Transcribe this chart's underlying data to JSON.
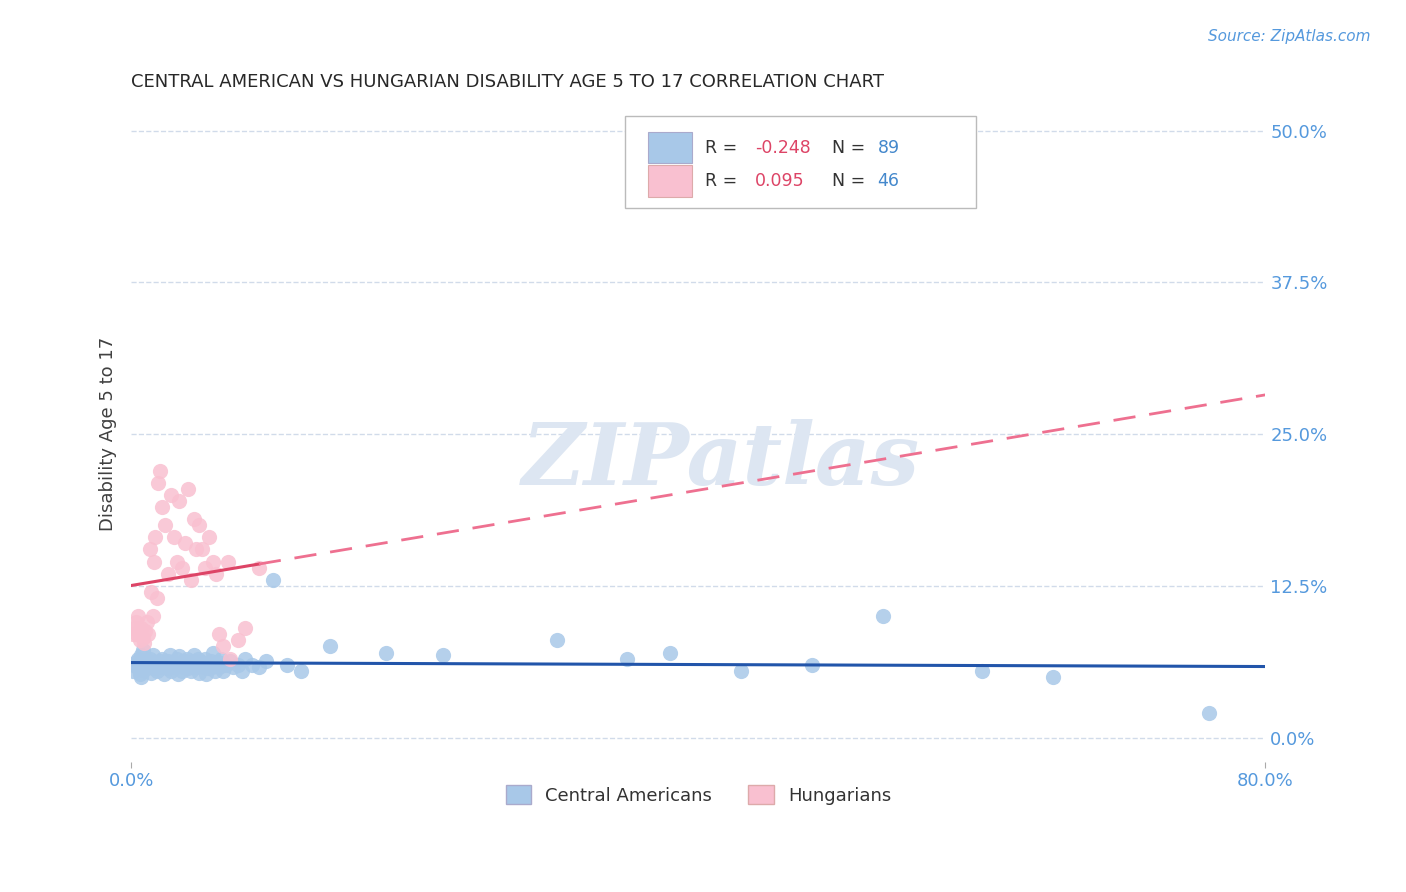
{
  "title": "CENTRAL AMERICAN VS HUNGARIAN DISABILITY AGE 5 TO 17 CORRELATION CHART",
  "source": "Source: ZipAtlas.com",
  "ylabel": "Disability Age 5 to 17",
  "xlim": [
    0.0,
    0.8
  ],
  "ylim": [
    -0.02,
    0.52
  ],
  "xlabel_tick_vals": [
    0.0,
    0.8
  ],
  "xlabel_tick_labels": [
    "0.0%",
    "80.0%"
  ],
  "ylabel_tick_vals": [
    0.0,
    0.125,
    0.25,
    0.375,
    0.5
  ],
  "ylabel_tick_labels": [
    "0.0%",
    "12.5%",
    "25.0%",
    "37.5%",
    "50.0%"
  ],
  "blue_scatter": "#a8c8e8",
  "pink_scatter": "#f9c0d0",
  "regression_blue": "#2255aa",
  "regression_pink_solid": "#dd4466",
  "regression_pink_dashed": "#ee7090",
  "grid_color": "#ccd8e8",
  "watermark_text": "ZIPatlas",
  "watermark_color": "#dde6f2",
  "title_color": "#282828",
  "axis_tick_color": "#5599dd",
  "background_color": "#ffffff",
  "legend_R_ca": "-0.248",
  "legend_N_ca": "89",
  "legend_R_hu": "0.095",
  "legend_N_hu": "46",
  "legend_num_color": "#dd4466",
  "legend_N_color": "#4488cc",
  "ca_x": [
    0.001,
    0.002,
    0.003,
    0.004,
    0.005,
    0.006,
    0.007,
    0.007,
    0.008,
    0.009,
    0.01,
    0.011,
    0.012,
    0.013,
    0.014,
    0.015,
    0.016,
    0.017,
    0.018,
    0.019,
    0.02,
    0.021,
    0.022,
    0.023,
    0.024,
    0.025,
    0.026,
    0.027,
    0.028,
    0.029,
    0.03,
    0.031,
    0.032,
    0.033,
    0.034,
    0.035,
    0.036,
    0.037,
    0.038,
    0.039,
    0.04,
    0.041,
    0.042,
    0.043,
    0.044,
    0.045,
    0.046,
    0.047,
    0.048,
    0.049,
    0.05,
    0.051,
    0.052,
    0.053,
    0.054,
    0.055,
    0.056,
    0.057,
    0.058,
    0.059,
    0.06,
    0.061,
    0.062,
    0.063,
    0.065,
    0.067,
    0.07,
    0.072,
    0.075,
    0.078,
    0.08,
    0.085,
    0.09,
    0.095,
    0.1,
    0.11,
    0.12,
    0.14,
    0.18,
    0.22,
    0.3,
    0.35,
    0.38,
    0.43,
    0.48,
    0.53,
    0.6,
    0.65,
    0.76
  ],
  "ca_y": [
    0.055,
    0.06,
    0.062,
    0.058,
    0.065,
    0.052,
    0.068,
    0.05,
    0.072,
    0.056,
    0.06,
    0.064,
    0.058,
    0.065,
    0.053,
    0.068,
    0.057,
    0.062,
    0.055,
    0.06,
    0.063,
    0.058,
    0.065,
    0.052,
    0.06,
    0.057,
    0.063,
    0.068,
    0.055,
    0.06,
    0.062,
    0.058,
    0.065,
    0.052,
    0.067,
    0.06,
    0.055,
    0.063,
    0.058,
    0.065,
    0.057,
    0.062,
    0.055,
    0.06,
    0.068,
    0.063,
    0.058,
    0.065,
    0.053,
    0.06,
    0.062,
    0.058,
    0.065,
    0.052,
    0.057,
    0.06,
    0.063,
    0.058,
    0.07,
    0.055,
    0.06,
    0.062,
    0.058,
    0.065,
    0.055,
    0.06,
    0.063,
    0.058,
    0.06,
    0.055,
    0.065,
    0.06,
    0.058,
    0.063,
    0.13,
    0.06,
    0.055,
    0.075,
    0.07,
    0.068,
    0.08,
    0.065,
    0.07,
    0.055,
    0.06,
    0.1,
    0.055,
    0.05,
    0.02
  ],
  "hu_x": [
    0.001,
    0.002,
    0.003,
    0.004,
    0.005,
    0.006,
    0.007,
    0.008,
    0.009,
    0.01,
    0.011,
    0.012,
    0.013,
    0.014,
    0.015,
    0.016,
    0.017,
    0.018,
    0.019,
    0.02,
    0.022,
    0.024,
    0.026,
    0.028,
    0.03,
    0.032,
    0.034,
    0.036,
    0.038,
    0.04,
    0.042,
    0.044,
    0.046,
    0.048,
    0.05,
    0.052,
    0.055,
    0.058,
    0.06,
    0.062,
    0.065,
    0.068,
    0.07,
    0.075,
    0.08,
    0.09
  ],
  "hu_y": [
    0.085,
    0.09,
    0.095,
    0.085,
    0.1,
    0.08,
    0.09,
    0.082,
    0.078,
    0.088,
    0.095,
    0.085,
    0.155,
    0.12,
    0.1,
    0.145,
    0.165,
    0.115,
    0.21,
    0.22,
    0.19,
    0.175,
    0.135,
    0.2,
    0.165,
    0.145,
    0.195,
    0.14,
    0.16,
    0.205,
    0.13,
    0.18,
    0.155,
    0.175,
    0.155,
    0.14,
    0.165,
    0.145,
    0.135,
    0.085,
    0.075,
    0.145,
    0.065,
    0.08,
    0.09,
    0.14
  ]
}
